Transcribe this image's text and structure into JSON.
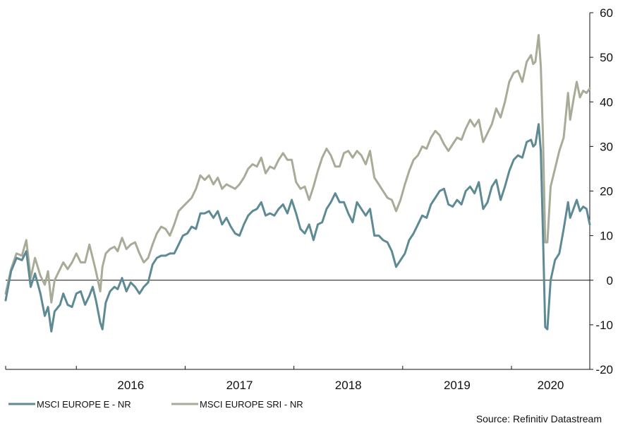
{
  "chart_data": {
    "type": "line",
    "title": "",
    "xlabel": "",
    "ylabel": "",
    "ylim": [
      -20,
      60
    ],
    "yticks": [
      -20,
      -10,
      0,
      10,
      20,
      30,
      40,
      50,
      60
    ],
    "y_axis_side": "right",
    "x_range": [
      2015.35,
      2020.72
    ],
    "x_tick_boundaries": [
      2015.35,
      2016.0,
      2017.0,
      2018.0,
      2019.0,
      2020.0,
      2020.72
    ],
    "x_labels": [
      {
        "label": "2016",
        "x": 2016.5
      },
      {
        "label": "2017",
        "x": 2017.5
      },
      {
        "label": "2018",
        "x": 2018.5
      },
      {
        "label": "2019",
        "x": 2019.5
      },
      {
        "label": "2020",
        "x": 2020.36
      }
    ],
    "zero_line": true,
    "grid": false,
    "legend_position": "bottom-left",
    "series": [
      {
        "name": "MSCI EUROPE E - NR",
        "color": "#5e8a94",
        "points": [
          [
            2015.35,
            -4.5
          ],
          [
            2015.4,
            2.0
          ],
          [
            2015.45,
            5.0
          ],
          [
            2015.5,
            4.5
          ],
          [
            2015.54,
            6.5
          ],
          [
            2015.58,
            -1.5
          ],
          [
            2015.62,
            1.5
          ],
          [
            2015.67,
            -3.0
          ],
          [
            2015.71,
            -8.0
          ],
          [
            2015.74,
            -6.0
          ],
          [
            2015.77,
            -11.5
          ],
          [
            2015.8,
            -7.0
          ],
          [
            2015.85,
            -5.5
          ],
          [
            2015.88,
            -3.0
          ],
          [
            2015.92,
            -5.5
          ],
          [
            2015.96,
            -6.0
          ],
          [
            2016.0,
            -3.0
          ],
          [
            2016.04,
            -2.5
          ],
          [
            2016.08,
            -5.5
          ],
          [
            2016.12,
            -3.5
          ],
          [
            2016.15,
            -1.5
          ],
          [
            2016.18,
            -4.5
          ],
          [
            2016.22,
            -9.5
          ],
          [
            2016.24,
            -11.0
          ],
          [
            2016.27,
            -5.0
          ],
          [
            2016.31,
            -2.5
          ],
          [
            2016.35,
            -1.5
          ],
          [
            2016.38,
            -2.0
          ],
          [
            2016.42,
            0.5
          ],
          [
            2016.46,
            -2.5
          ],
          [
            2016.5,
            -0.5
          ],
          [
            2016.54,
            -1.5
          ],
          [
            2016.58,
            -3.0
          ],
          [
            2016.62,
            -1.5
          ],
          [
            2016.66,
            -0.5
          ],
          [
            2016.7,
            3.5
          ],
          [
            2016.74,
            5.0
          ],
          [
            2016.78,
            5.5
          ],
          [
            2016.82,
            5.5
          ],
          [
            2016.86,
            6.0
          ],
          [
            2016.9,
            6.0
          ],
          [
            2016.94,
            8.0
          ],
          [
            2016.98,
            10.0
          ],
          [
            2017.02,
            10.5
          ],
          [
            2017.06,
            12.0
          ],
          [
            2017.1,
            11.5
          ],
          [
            2017.14,
            15.0
          ],
          [
            2017.18,
            15.0
          ],
          [
            2017.22,
            15.5
          ],
          [
            2017.26,
            14.0
          ],
          [
            2017.3,
            15.5
          ],
          [
            2017.34,
            12.5
          ],
          [
            2017.38,
            14.0
          ],
          [
            2017.42,
            12.0
          ],
          [
            2017.46,
            10.5
          ],
          [
            2017.5,
            10.0
          ],
          [
            2017.54,
            12.5
          ],
          [
            2017.58,
            14.5
          ],
          [
            2017.62,
            15.5
          ],
          [
            2017.66,
            16.0
          ],
          [
            2017.7,
            17.5
          ],
          [
            2017.74,
            14.5
          ],
          [
            2017.78,
            15.0
          ],
          [
            2017.82,
            14.5
          ],
          [
            2017.86,
            16.0
          ],
          [
            2017.9,
            17.0
          ],
          [
            2017.94,
            15.0
          ],
          [
            2017.98,
            18.0
          ],
          [
            2018.02,
            15.0
          ],
          [
            2018.06,
            11.5
          ],
          [
            2018.1,
            10.5
          ],
          [
            2018.14,
            12.5
          ],
          [
            2018.18,
            9.0
          ],
          [
            2018.22,
            12.5
          ],
          [
            2018.26,
            13.0
          ],
          [
            2018.3,
            16.0
          ],
          [
            2018.34,
            17.5
          ],
          [
            2018.38,
            19.5
          ],
          [
            2018.42,
            17.5
          ],
          [
            2018.46,
            17.5
          ],
          [
            2018.5,
            15.0
          ],
          [
            2018.54,
            13.0
          ],
          [
            2018.58,
            17.5
          ],
          [
            2018.62,
            16.0
          ],
          [
            2018.66,
            14.5
          ],
          [
            2018.7,
            16.0
          ],
          [
            2018.74,
            10.0
          ],
          [
            2018.78,
            10.0
          ],
          [
            2018.82,
            9.0
          ],
          [
            2018.86,
            8.5
          ],
          [
            2018.9,
            6.5
          ],
          [
            2018.94,
            3.0
          ],
          [
            2018.98,
            4.5
          ],
          [
            2019.02,
            6.0
          ],
          [
            2019.06,
            9.0
          ],
          [
            2019.1,
            10.5
          ],
          [
            2019.14,
            12.5
          ],
          [
            2019.18,
            14.5
          ],
          [
            2019.22,
            14.0
          ],
          [
            2019.26,
            17.0
          ],
          [
            2019.3,
            18.5
          ],
          [
            2019.34,
            20.0
          ],
          [
            2019.38,
            20.5
          ],
          [
            2019.42,
            17.0
          ],
          [
            2019.46,
            16.5
          ],
          [
            2019.5,
            18.0
          ],
          [
            2019.54,
            17.0
          ],
          [
            2019.58,
            20.0
          ],
          [
            2019.62,
            21.0
          ],
          [
            2019.66,
            19.5
          ],
          [
            2019.7,
            22.0
          ],
          [
            2019.74,
            16.0
          ],
          [
            2019.78,
            17.5
          ],
          [
            2019.82,
            21.0
          ],
          [
            2019.86,
            22.5
          ],
          [
            2019.9,
            18.0
          ],
          [
            2019.94,
            21.0
          ],
          [
            2019.98,
            24.5
          ],
          [
            2020.02,
            27.0
          ],
          [
            2020.06,
            28.0
          ],
          [
            2020.1,
            27.5
          ],
          [
            2020.14,
            31.0
          ],
          [
            2020.18,
            31.5
          ],
          [
            2020.2,
            30.0
          ],
          [
            2020.22,
            30.5
          ],
          [
            2020.25,
            35.0
          ],
          [
            2020.27,
            29.0
          ],
          [
            2020.29,
            10.0
          ],
          [
            2020.31,
            -10.5
          ],
          [
            2020.33,
            -11.0
          ],
          [
            2020.36,
            0.0
          ],
          [
            2020.4,
            4.5
          ],
          [
            2020.44,
            6.0
          ],
          [
            2020.48,
            11.5
          ],
          [
            2020.52,
            17.5
          ],
          [
            2020.54,
            14.0
          ],
          [
            2020.57,
            16.0
          ],
          [
            2020.6,
            18.0
          ],
          [
            2020.63,
            15.5
          ],
          [
            2020.66,
            16.5
          ],
          [
            2020.69,
            16.0
          ],
          [
            2020.72,
            12.5
          ]
        ]
      },
      {
        "name": "MSCI EUROPE SRI - NR",
        "color": "#a8ab98",
        "points": [
          [
            2015.35,
            -3.0
          ],
          [
            2015.4,
            2.5
          ],
          [
            2015.45,
            6.0
          ],
          [
            2015.5,
            5.5
          ],
          [
            2015.54,
            9.0
          ],
          [
            2015.58,
            0.5
          ],
          [
            2015.62,
            5.0
          ],
          [
            2015.67,
            1.0
          ],
          [
            2015.71,
            -1.0
          ],
          [
            2015.74,
            2.0
          ],
          [
            2015.77,
            -5.0
          ],
          [
            2015.8,
            0.0
          ],
          [
            2015.85,
            2.5
          ],
          [
            2015.88,
            4.0
          ],
          [
            2015.92,
            2.5
          ],
          [
            2015.96,
            4.0
          ],
          [
            2016.0,
            6.0
          ],
          [
            2016.04,
            4.0
          ],
          [
            2016.08,
            4.0
          ],
          [
            2016.12,
            8.0
          ],
          [
            2016.15,
            5.0
          ],
          [
            2016.18,
            2.0
          ],
          [
            2016.22,
            -2.5
          ],
          [
            2016.24,
            3.0
          ],
          [
            2016.27,
            6.0
          ],
          [
            2016.31,
            7.0
          ],
          [
            2016.35,
            7.5
          ],
          [
            2016.38,
            6.5
          ],
          [
            2016.42,
            9.5
          ],
          [
            2016.46,
            7.0
          ],
          [
            2016.5,
            8.0
          ],
          [
            2016.54,
            8.5
          ],
          [
            2016.58,
            6.0
          ],
          [
            2016.62,
            4.0
          ],
          [
            2016.66,
            5.0
          ],
          [
            2016.7,
            8.0
          ],
          [
            2016.74,
            10.5
          ],
          [
            2016.78,
            12.0
          ],
          [
            2016.82,
            11.5
          ],
          [
            2016.86,
            10.0
          ],
          [
            2016.9,
            12.5
          ],
          [
            2016.94,
            15.5
          ],
          [
            2016.98,
            16.5
          ],
          [
            2017.02,
            17.5
          ],
          [
            2017.06,
            18.5
          ],
          [
            2017.1,
            20.5
          ],
          [
            2017.14,
            23.5
          ],
          [
            2017.18,
            22.5
          ],
          [
            2017.22,
            23.5
          ],
          [
            2017.26,
            21.5
          ],
          [
            2017.3,
            23.0
          ],
          [
            2017.34,
            20.5
          ],
          [
            2017.38,
            21.5
          ],
          [
            2017.42,
            21.0
          ],
          [
            2017.46,
            20.5
          ],
          [
            2017.5,
            21.5
          ],
          [
            2017.54,
            23.0
          ],
          [
            2017.58,
            25.0
          ],
          [
            2017.62,
            26.0
          ],
          [
            2017.66,
            25.5
          ],
          [
            2017.7,
            27.5
          ],
          [
            2017.74,
            24.0
          ],
          [
            2017.78,
            25.5
          ],
          [
            2017.82,
            25.0
          ],
          [
            2017.86,
            27.0
          ],
          [
            2017.9,
            28.5
          ],
          [
            2017.94,
            27.0
          ],
          [
            2017.98,
            27.0
          ],
          [
            2018.02,
            22.0
          ],
          [
            2018.06,
            20.5
          ],
          [
            2018.1,
            21.0
          ],
          [
            2018.14,
            18.0
          ],
          [
            2018.18,
            21.0
          ],
          [
            2018.22,
            24.5
          ],
          [
            2018.26,
            27.5
          ],
          [
            2018.3,
            29.5
          ],
          [
            2018.34,
            28.0
          ],
          [
            2018.38,
            25.5
          ],
          [
            2018.42,
            25.5
          ],
          [
            2018.46,
            28.5
          ],
          [
            2018.5,
            29.0
          ],
          [
            2018.54,
            27.5
          ],
          [
            2018.58,
            29.0
          ],
          [
            2018.62,
            28.0
          ],
          [
            2018.66,
            26.0
          ],
          [
            2018.7,
            29.0
          ],
          [
            2018.74,
            23.0
          ],
          [
            2018.78,
            21.5
          ],
          [
            2018.82,
            20.0
          ],
          [
            2018.86,
            18.5
          ],
          [
            2018.9,
            18.0
          ],
          [
            2018.94,
            15.5
          ],
          [
            2018.98,
            18.0
          ],
          [
            2019.02,
            21.5
          ],
          [
            2019.06,
            24.5
          ],
          [
            2019.1,
            27.0
          ],
          [
            2019.14,
            28.0
          ],
          [
            2019.18,
            30.0
          ],
          [
            2019.22,
            29.5
          ],
          [
            2019.26,
            32.0
          ],
          [
            2019.3,
            33.5
          ],
          [
            2019.34,
            32.5
          ],
          [
            2019.38,
            30.5
          ],
          [
            2019.42,
            29.0
          ],
          [
            2019.46,
            30.5
          ],
          [
            2019.5,
            32.0
          ],
          [
            2019.54,
            31.5
          ],
          [
            2019.58,
            34.0
          ],
          [
            2019.62,
            36.0
          ],
          [
            2019.66,
            34.5
          ],
          [
            2019.7,
            36.0
          ],
          [
            2019.74,
            31.0
          ],
          [
            2019.78,
            33.0
          ],
          [
            2019.82,
            35.0
          ],
          [
            2019.86,
            38.5
          ],
          [
            2019.9,
            36.5
          ],
          [
            2019.94,
            40.0
          ],
          [
            2019.98,
            44.5
          ],
          [
            2020.02,
            46.5
          ],
          [
            2020.06,
            47.0
          ],
          [
            2020.1,
            44.5
          ],
          [
            2020.14,
            49.0
          ],
          [
            2020.18,
            50.5
          ],
          [
            2020.2,
            48.5
          ],
          [
            2020.22,
            49.0
          ],
          [
            2020.25,
            55.0
          ],
          [
            2020.27,
            48.0
          ],
          [
            2020.29,
            32.0
          ],
          [
            2020.31,
            8.5
          ],
          [
            2020.33,
            8.5
          ],
          [
            2020.36,
            21.0
          ],
          [
            2020.4,
            25.0
          ],
          [
            2020.44,
            29.0
          ],
          [
            2020.48,
            32.0
          ],
          [
            2020.52,
            42.0
          ],
          [
            2020.54,
            36.0
          ],
          [
            2020.57,
            40.5
          ],
          [
            2020.6,
            44.5
          ],
          [
            2020.63,
            41.0
          ],
          [
            2020.66,
            42.5
          ],
          [
            2020.69,
            42.0
          ],
          [
            2020.72,
            43.0
          ]
        ]
      }
    ]
  },
  "legend": {
    "items": [
      {
        "label": "MSCI EUROPE E - NR",
        "color": "#5e8a94"
      },
      {
        "label": "MSCI EUROPE SRI - NR",
        "color": "#a8ab98"
      }
    ]
  },
  "source": "Source:  Refinitiv Datastream"
}
